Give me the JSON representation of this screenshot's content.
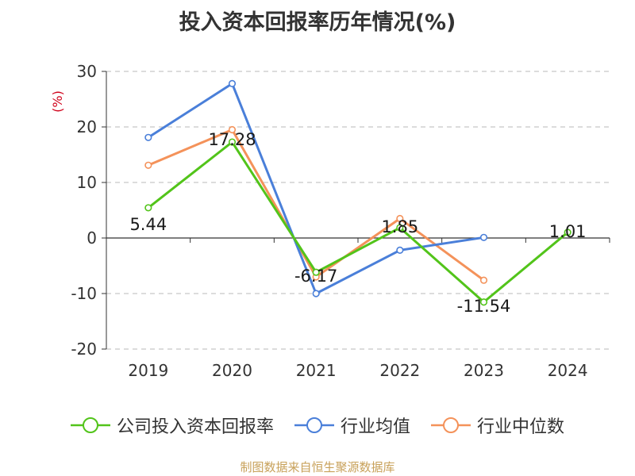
{
  "chart_data": {
    "type": "line",
    "title": "投入资本回报率历年情况(%)",
    "ylabel": "(%)",
    "xlabel": "",
    "categories": [
      "2019",
      "2020",
      "2021",
      "2022",
      "2023",
      "2024"
    ],
    "ylim": [
      -20,
      30
    ],
    "yticks": [
      30,
      20,
      10,
      0,
      -10,
      -20
    ],
    "grid": true,
    "legend_position": "bottom",
    "series": [
      {
        "name": "公司投入资本回报率",
        "color": "#52c41a",
        "values": [
          5.44,
          17.28,
          -6.17,
          1.85,
          -11.54,
          1.01
        ],
        "labels": [
          "5.44",
          "17.28",
          "-6.17",
          "1.85",
          "-11.54",
          "1.01"
        ]
      },
      {
        "name": "行业均值",
        "color": "#4a7fd9",
        "values": [
          18.1,
          27.8,
          -10.0,
          -2.2,
          0.1,
          null
        ]
      },
      {
        "name": "行业中位数",
        "color": "#f4925a",
        "values": [
          13.1,
          19.5,
          -7.0,
          3.5,
          -7.6,
          null
        ]
      }
    ]
  },
  "footer": "制图数据来自恒生聚源数据库"
}
